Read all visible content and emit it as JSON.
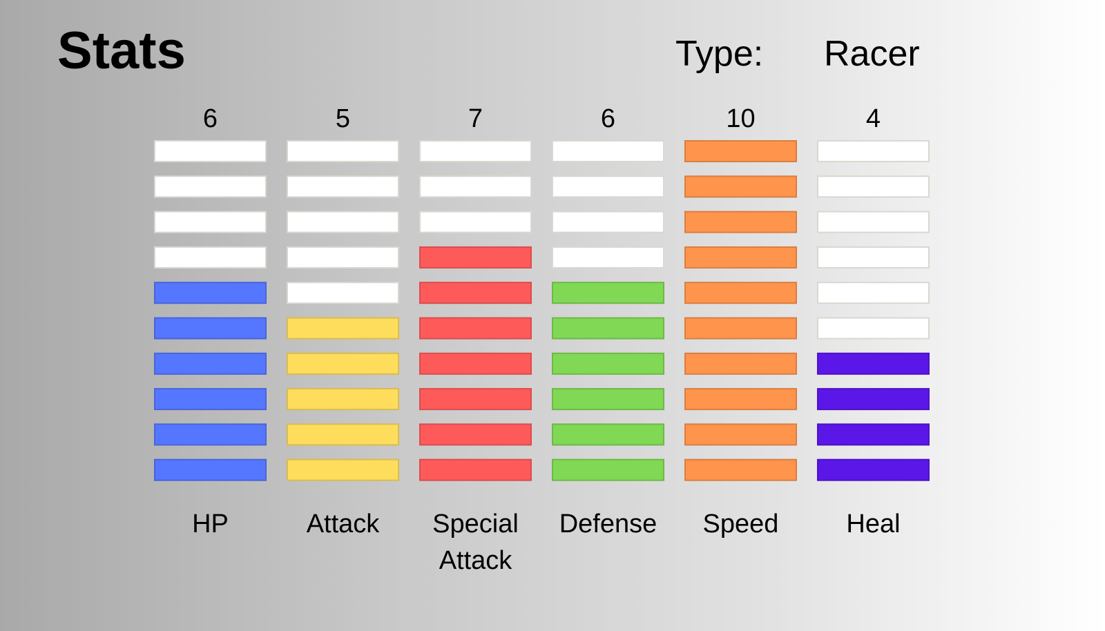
{
  "header": {
    "title": "Stats",
    "type_label": "Type:",
    "type_value": "Racer"
  },
  "chart_data": {
    "type": "bar",
    "title": "Stats",
    "max_segments": 10,
    "categories": [
      {
        "label_lines": [
          "HP"
        ],
        "value": 6,
        "color": "#5577ff"
      },
      {
        "label_lines": [
          "Attack"
        ],
        "value": 5,
        "color": "#ffdd5c"
      },
      {
        "label_lines": [
          "Special",
          "Attack"
        ],
        "value": 7,
        "color": "#ff5a5a"
      },
      {
        "label_lines": [
          "Defense"
        ],
        "value": 6,
        "color": "#80d855"
      },
      {
        "label_lines": [
          "Speed"
        ],
        "value": 10,
        "color": "#ff944d"
      },
      {
        "label_lines": [
          "Heal"
        ],
        "value": 4,
        "color": "#5b16e8"
      }
    ],
    "empty_color": "#ffffff"
  }
}
